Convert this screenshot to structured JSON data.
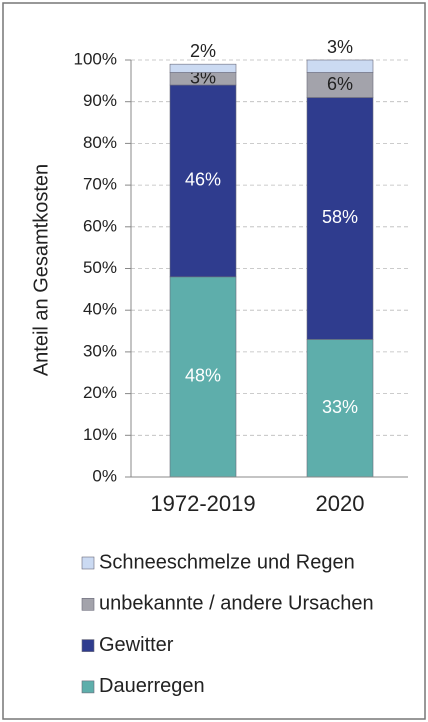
{
  "chart_data": {
    "type": "stacked_bar",
    "y_axis_label": "Anteil an Gesamtkosten",
    "categories": [
      "1972-2019",
      "2020"
    ],
    "series": [
      {
        "name": "Dauerregen",
        "color": "#5eaeab",
        "values": [
          48,
          33
        ],
        "value_labels": [
          "48%",
          "33%"
        ]
      },
      {
        "name": "Gewitter",
        "color": "#2f3c8e",
        "values": [
          46,
          58
        ],
        "value_labels": [
          "46%",
          "58%"
        ]
      },
      {
        "name": "unbekannte / andere Ursachen",
        "color": "#a3a3ab",
        "values": [
          3,
          6
        ],
        "value_labels": [
          "3%",
          "6%"
        ]
      },
      {
        "name": "Schneeschmelze und Regen",
        "color": "#cbdaf2",
        "values": [
          2,
          3
        ],
        "value_labels": [
          "2%",
          "3%"
        ]
      }
    ],
    "ylim": [
      0,
      100
    ],
    "yticks": [
      {
        "value": 0,
        "label": "0%"
      },
      {
        "value": 10,
        "label": "10%"
      },
      {
        "value": 20,
        "label": "20%"
      },
      {
        "value": 30,
        "label": "30%"
      },
      {
        "value": 40,
        "label": "40%"
      },
      {
        "value": 50,
        "label": "50%"
      },
      {
        "value": 60,
        "label": "60%"
      },
      {
        "value": 70,
        "label": "70%"
      },
      {
        "value": 80,
        "label": "80%"
      },
      {
        "value": 90,
        "label": "90%"
      },
      {
        "value": 100,
        "label": "100%"
      }
    ],
    "grid": true
  }
}
